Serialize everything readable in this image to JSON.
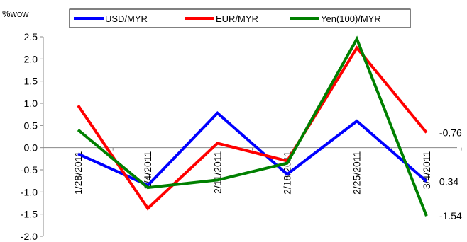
{
  "chart_data": {
    "type": "line",
    "ylabel": "%wow",
    "x": [
      "1/28/2011",
      "2/4/2011",
      "2/11/2011",
      "2/18/2011",
      "2/25/2011",
      "3/4/2011"
    ],
    "ylim": [
      -2.0,
      2.5
    ],
    "yticks": [
      "2.5",
      "2.0",
      "1.5",
      "1.0",
      "0.5",
      "0.0",
      "-0.5",
      "-1.0",
      "-1.5",
      "-2.0"
    ],
    "grid": false,
    "legend": "top",
    "series": [
      {
        "name": "USD/MYR",
        "color": "#0000ff",
        "values": [
          -0.14,
          -0.85,
          0.78,
          -0.6,
          0.6,
          -0.76
        ]
      },
      {
        "name": "EUR/MYR",
        "color": "#ff0000",
        "values": [
          0.95,
          -1.37,
          0.1,
          -0.3,
          2.25,
          0.34
        ]
      },
      {
        "name": "Yen(100)/MYR",
        "color": "#008000",
        "values": [
          0.4,
          -0.9,
          -0.73,
          -0.35,
          2.45,
          -1.54
        ]
      }
    ],
    "end_labels": [
      "0.34",
      "-0.76",
      "-1.54"
    ]
  }
}
